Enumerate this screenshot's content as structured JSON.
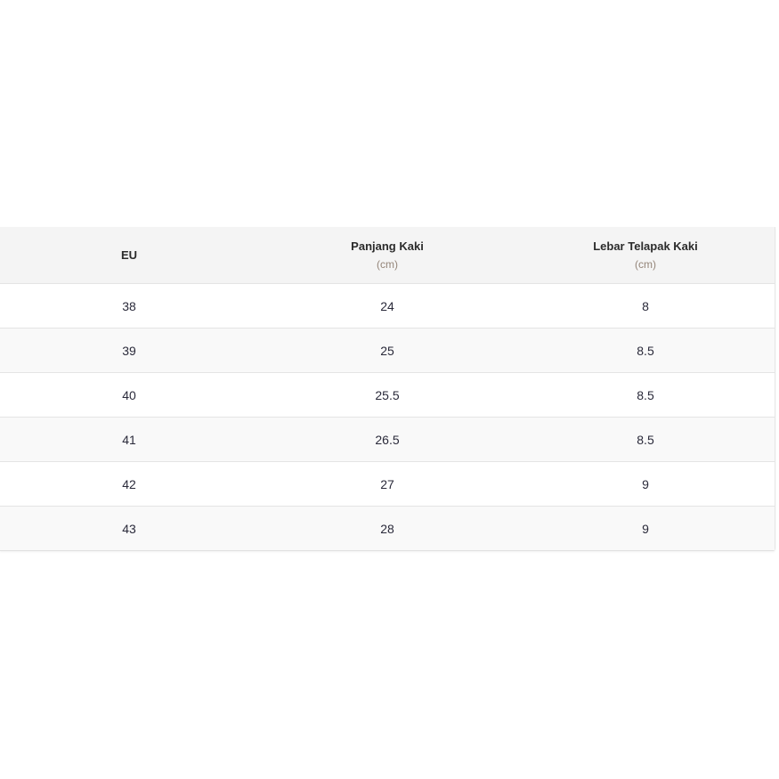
{
  "table": {
    "headers": [
      {
        "label": "EU",
        "unit": ""
      },
      {
        "label": "Panjang Kaki",
        "unit": "(cm)"
      },
      {
        "label": "Lebar Telapak Kaki",
        "unit": "(cm)"
      }
    ],
    "rows": [
      [
        "38",
        "24",
        "8"
      ],
      [
        "39",
        "25",
        "8.5"
      ],
      [
        "40",
        "25.5",
        "8.5"
      ],
      [
        "41",
        "26.5",
        "8.5"
      ],
      [
        "42",
        "27",
        "9"
      ],
      [
        "43",
        "28",
        "9"
      ]
    ]
  }
}
